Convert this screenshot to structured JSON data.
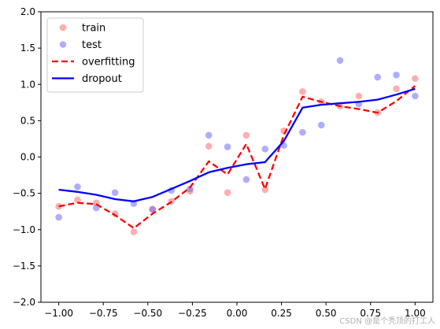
{
  "chart_data": {
    "type": "scatter",
    "xlim": [
      -1.1,
      1.1
    ],
    "ylim": [
      -2.0,
      2.0
    ],
    "xticks": [
      -1.0,
      -0.75,
      -0.5,
      -0.25,
      0.0,
      0.25,
      0.5,
      0.75,
      1.0
    ],
    "xtick_labels": [
      "−1.00",
      "−0.75",
      "−0.50",
      "−0.25",
      "0.00",
      "0.25",
      "0.50",
      "0.75",
      "1.00"
    ],
    "yticks": [
      -2.0,
      -1.5,
      -1.0,
      -0.5,
      0.0,
      0.5,
      1.0,
      1.5,
      2.0
    ],
    "ytick_labels": [
      "−2.0",
      "−1.5",
      "−1.0",
      "−0.5",
      "0.0",
      "0.5",
      "1.0",
      "1.5",
      "2.0"
    ],
    "grid": false,
    "legend_position": "top-left",
    "series": [
      {
        "name": "train",
        "kind": "scatter",
        "color": "#ff6b6b",
        "x": [
          -1.0,
          -0.8947,
          -0.7895,
          -0.6842,
          -0.5789,
          -0.4737,
          -0.3684,
          -0.2632,
          -0.1579,
          -0.0526,
          0.0526,
          0.1579,
          0.2632,
          0.3684,
          0.4737,
          0.5789,
          0.6842,
          0.7895,
          0.8947,
          1.0
        ],
        "y": [
          -0.68,
          -0.59,
          -0.63,
          -0.78,
          -1.03,
          -0.72,
          -0.61,
          -0.47,
          0.15,
          -0.49,
          0.3,
          -0.45,
          0.36,
          0.9,
          0.76,
          0.7,
          0.84,
          0.61,
          0.94,
          1.08
        ]
      },
      {
        "name": "test",
        "kind": "scatter",
        "color": "#6b6bff",
        "x": [
          -1.0,
          -0.8947,
          -0.7895,
          -0.6842,
          -0.5789,
          -0.4737,
          -0.3684,
          -0.2632,
          -0.1579,
          -0.0526,
          0.0526,
          0.1579,
          0.2632,
          0.3684,
          0.4737,
          0.5789,
          0.6842,
          0.7895,
          0.8947,
          1.0
        ],
        "y": [
          -0.83,
          -0.41,
          -0.7,
          -0.49,
          -0.64,
          -0.72,
          -0.46,
          -0.44,
          0.3,
          0.14,
          -0.31,
          0.11,
          0.16,
          0.34,
          0.44,
          1.33,
          0.73,
          1.1,
          1.13,
          0.84
        ]
      },
      {
        "name": "overfitting",
        "kind": "line",
        "style": "dashed",
        "color": "#ff0000",
        "x": [
          -1.0,
          -0.8947,
          -0.7895,
          -0.6842,
          -0.5789,
          -0.4737,
          -0.3684,
          -0.2632,
          -0.1579,
          -0.0526,
          0.0526,
          0.1579,
          0.2632,
          0.3684,
          0.4737,
          0.5789,
          0.6842,
          0.7895,
          0.8947,
          1.0
        ],
        "y": [
          -0.68,
          -0.63,
          -0.65,
          -0.8,
          -0.98,
          -0.78,
          -0.62,
          -0.42,
          -0.06,
          -0.24,
          0.18,
          -0.44,
          0.3,
          0.83,
          0.76,
          0.7,
          0.66,
          0.61,
          0.77,
          0.98
        ]
      },
      {
        "name": "dropout",
        "kind": "line",
        "style": "solid",
        "color": "#0000ff",
        "x": [
          -1.0,
          -0.8947,
          -0.7895,
          -0.6842,
          -0.5789,
          -0.4737,
          -0.3684,
          -0.2632,
          -0.1579,
          -0.0526,
          0.0526,
          0.1579,
          0.2632,
          0.3684,
          0.4737,
          0.5789,
          0.6842,
          0.7895,
          0.8947,
          1.0
        ],
        "y": [
          -0.45,
          -0.48,
          -0.52,
          -0.58,
          -0.61,
          -0.55,
          -0.44,
          -0.33,
          -0.21,
          -0.15,
          -0.1,
          -0.07,
          0.22,
          0.68,
          0.72,
          0.74,
          0.76,
          0.79,
          0.86,
          0.94
        ]
      }
    ]
  },
  "watermark": "CSDN @是个秃顶的打工人"
}
